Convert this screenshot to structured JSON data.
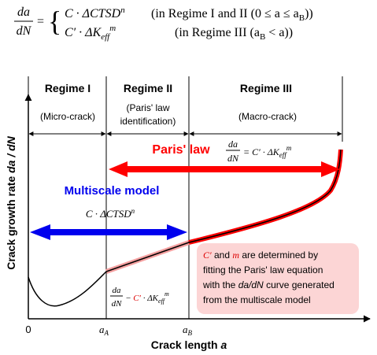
{
  "equation": {
    "lhs_num": "da",
    "lhs_den": "dN",
    "eq": "=",
    "case1": {
      "expr": "C · ΔCTSD",
      "exp": "n",
      "cond": "(in Regime I and II (0 ≤ a ≤ a",
      "cond_sub": "B",
      "cond_end": "))"
    },
    "case2": {
      "expr": "C′  · ΔK",
      "sub": "eff",
      "exp": "m",
      "cond": "(in Regime III (a",
      "cond_sub": "B",
      "cond_end": " < a))"
    }
  },
  "regimes": [
    {
      "title": "Regime I",
      "desc": [
        "(Micro-crack)"
      ]
    },
    {
      "title": "Regime II",
      "desc": [
        "(Paris' law",
        "identification)"
      ]
    },
    {
      "title": "Regime III",
      "desc": [
        "(Macro-crack)"
      ]
    }
  ],
  "paris": {
    "label": "Paris' law",
    "num": "da",
    "den": "dN",
    "rhs": "= C′ · ΔK",
    "sub": "eff",
    "exp": "m"
  },
  "multiscale": {
    "label": "Multiscale model",
    "expr": "C · ΔCTSD",
    "exp": "n"
  },
  "fit_eq": {
    "num": "da",
    "den": "dN",
    "minus": "−",
    "c": "C′",
    "rest": " · ΔK",
    "sub": "eff",
    "exp": "m"
  },
  "note": {
    "line1": {
      "c": "C′",
      "and": " and ",
      "m": "m",
      "rest": " are determined by"
    },
    "line2": "fitting the Paris' law equation",
    "line3": {
      "pre": "with the ",
      "dadn": "da/dN",
      "post": " curve generated"
    },
    "line4": "from the multiscale model"
  },
  "axes": {
    "y_label": "Crack growth rate ",
    "y_label_var": "da / dN",
    "x_label": "Crack length ",
    "x_label_var": "a",
    "origin": "0",
    "aA": "a",
    "aA_sub": "A",
    "aB": "a",
    "aB_sub": "B"
  }
}
